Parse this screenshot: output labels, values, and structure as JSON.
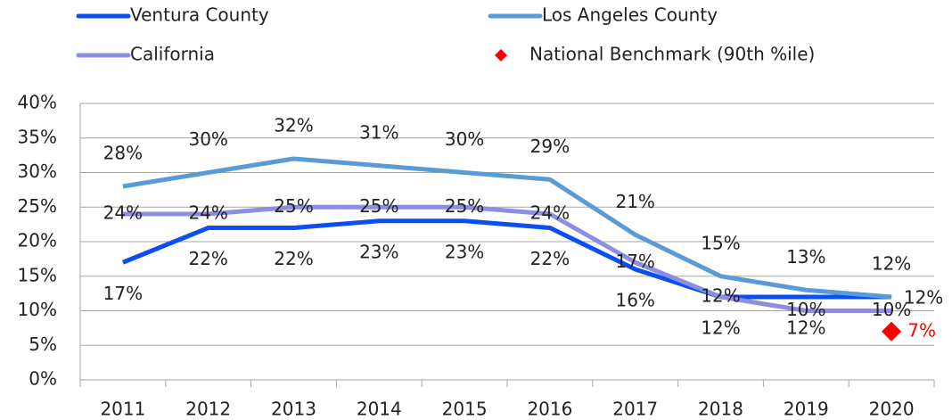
{
  "chart_data": {
    "type": "line",
    "categories": [
      "2011",
      "2012",
      "2013",
      "2014",
      "2015",
      "2016",
      "2017",
      "2018",
      "2019",
      "2020"
    ],
    "series": [
      {
        "name": "Ventura County",
        "color": "#0b4ff2",
        "values": [
          17,
          22,
          22,
          23,
          23,
          22,
          16,
          12,
          12,
          12
        ],
        "value_labels": [
          "17%",
          "22%",
          "22%",
          "23%",
          "23%",
          "22%",
          "16%",
          "12%",
          "12%",
          "12%"
        ]
      },
      {
        "name": "Los Angeles County",
        "color": "#5b9bd5",
        "values": [
          28,
          30,
          32,
          31,
          30,
          29,
          21,
          15,
          13,
          12
        ],
        "value_labels": [
          "28%",
          "30%",
          "32%",
          "31%",
          "30%",
          "29%",
          "21%",
          "15%",
          "13%",
          "12%"
        ]
      },
      {
        "name": "California",
        "color": "#8e8ee0",
        "values": [
          24,
          24,
          25,
          25,
          25,
          24,
          17,
          12,
          10,
          10
        ],
        "value_labels": [
          "24%",
          "24%",
          "25%",
          "25%",
          "25%",
          "24%",
          "17%",
          "12%",
          "10%",
          "10%"
        ]
      },
      {
        "name": "National Benchmark (90th %ile)",
        "type": "scatter",
        "color": "#ff0000",
        "values": [
          null,
          null,
          null,
          null,
          null,
          null,
          null,
          null,
          null,
          7
        ],
        "value_labels": [
          null,
          null,
          null,
          null,
          null,
          null,
          null,
          null,
          null,
          "7%"
        ]
      }
    ],
    "ylim": [
      0,
      40
    ],
    "yticks": [
      {
        "value": 0,
        "label": "0%"
      },
      {
        "value": 5,
        "label": "5%"
      },
      {
        "value": 10,
        "label": "10%"
      },
      {
        "value": 15,
        "label": "15%"
      },
      {
        "value": 20,
        "label": "20%"
      },
      {
        "value": 25,
        "label": "25%"
      },
      {
        "value": 30,
        "label": "30%"
      },
      {
        "value": 35,
        "label": "35%"
      },
      {
        "value": 40,
        "label": "40%"
      }
    ],
    "grid": true,
    "legend": "top"
  }
}
